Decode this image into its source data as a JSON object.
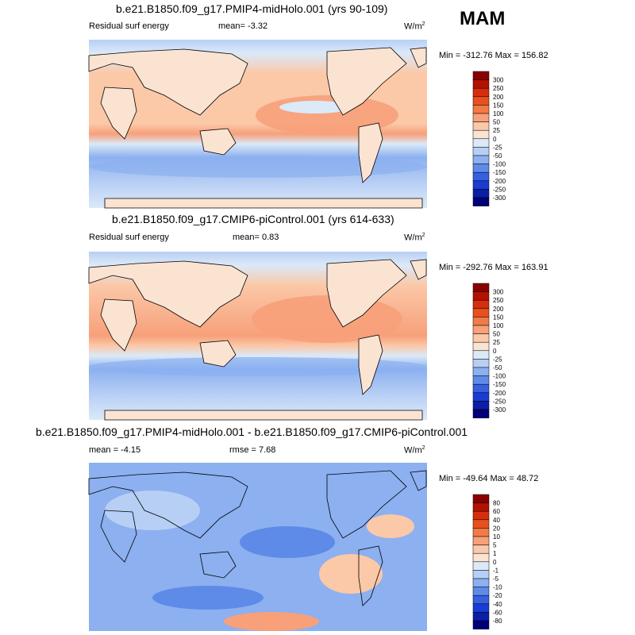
{
  "season": "MAM",
  "chart_data": [
    {
      "type": "heatmap",
      "title": "b.e21.B1850.f09_g17.PMIP4-midHolo.001 (yrs 90-109)",
      "left_label": "Residual surf energy",
      "mean_text": "mean=  -3.32",
      "units": "W/m",
      "units_exp": "2",
      "minmax_text": "Min = -312.76 Max = 156.82",
      "min": -312.76,
      "max": 156.82,
      "mean": -3.32,
      "colorbar": {
        "labels": [
          "300",
          "250",
          "200",
          "150",
          "100",
          "50",
          "25",
          "0",
          "-25",
          "-50",
          "-100",
          "-150",
          "-200",
          "-250",
          "-300"
        ],
        "colors": [
          "#8a0000",
          "#b31200",
          "#d62e0a",
          "#e8501e",
          "#f27a45",
          "#f7a07a",
          "#fbc8a8",
          "#fbe3d2",
          "#dbe9f8",
          "#b8cff5",
          "#8cb0f0",
          "#5e8ae8",
          "#3560e0",
          "#1a3bd4",
          "#0a1fa8",
          "#000078"
        ]
      }
    },
    {
      "type": "heatmap",
      "title": "b.e21.B1850.f09_g17.CMIP6-piControl.001 (yrs 614-633)",
      "left_label": "Residual surf energy",
      "mean_text": "mean=  0.83",
      "units": "W/m",
      "units_exp": "2",
      "minmax_text": "Min = -292.76 Max = 163.91",
      "min": -292.76,
      "max": 163.91,
      "mean": 0.83,
      "colorbar": {
        "labels": [
          "300",
          "250",
          "200",
          "150",
          "100",
          "50",
          "25",
          "0",
          "-25",
          "-50",
          "-100",
          "-150",
          "-200",
          "-250",
          "-300"
        ],
        "colors": [
          "#8a0000",
          "#b31200",
          "#d62e0a",
          "#e8501e",
          "#f27a45",
          "#f7a07a",
          "#fbc8a8",
          "#fbe3d2",
          "#dbe9f8",
          "#b8cff5",
          "#8cb0f0",
          "#5e8ae8",
          "#3560e0",
          "#1a3bd4",
          "#0a1fa8",
          "#000078"
        ]
      }
    },
    {
      "type": "heatmap",
      "title": "b.e21.B1850.f09_g17.PMIP4-midHolo.001 - b.e21.B1850.f09_g17.CMIP6-piControl.001",
      "mean_text": "mean =  -4.15",
      "rmse_text": "rmse =  7.68",
      "units": "W/m",
      "units_exp": "2",
      "minmax_text": "Min = -49.64 Max =  48.72",
      "min": -49.64,
      "max": 48.72,
      "mean": -4.15,
      "rmse": 7.68,
      "colorbar": {
        "labels": [
          "80",
          "60",
          "40",
          "20",
          "10",
          "5",
          "1",
          "0",
          "-1",
          "-5",
          "-10",
          "-20",
          "-40",
          "-60",
          "-80"
        ],
        "colors": [
          "#8a0000",
          "#b31200",
          "#d62e0a",
          "#e8501e",
          "#f27a45",
          "#f7a07a",
          "#fbc8a8",
          "#fbe3d2",
          "#dbe9f8",
          "#b8cff5",
          "#8cb0f0",
          "#5e8ae8",
          "#3560e0",
          "#1a3bd4",
          "#0a1fa8",
          "#000078"
        ]
      }
    }
  ]
}
